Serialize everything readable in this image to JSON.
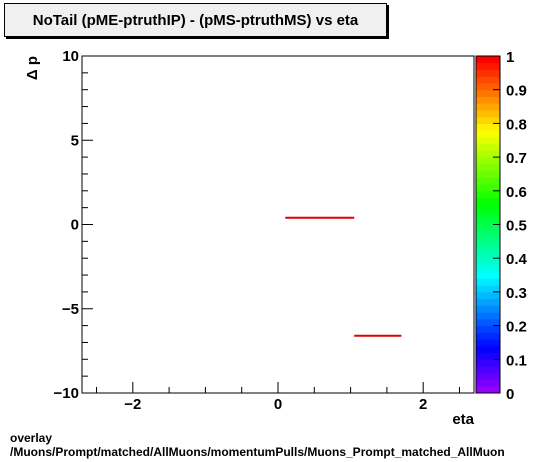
{
  "chart_data": {
    "type": "line",
    "title": "NoTail (pME-ptruthIP) - (pMS-ptruthMS) vs eta",
    "xlabel": "eta",
    "ylabel": "Δ p",
    "xlim": [
      -2.7,
      2.7
    ],
    "ylim": [
      -10,
      10
    ],
    "x_ticks": [
      -2,
      0,
      2
    ],
    "x_tick_labels": [
      "−2",
      "0",
      "2"
    ],
    "y_ticks": [
      -10,
      -5,
      0,
      5,
      10
    ],
    "y_tick_labels": [
      "−10",
      "−5",
      "0",
      "5",
      "10"
    ],
    "grid": false,
    "segments": [
      {
        "x_start": 0.1,
        "x_end": 1.05,
        "y": 0.4
      },
      {
        "x_start": 1.05,
        "x_end": 1.7,
        "y": -6.6
      }
    ],
    "color_scale": {
      "min": 0,
      "max": 1,
      "tick_labels": [
        "0",
        "0.1",
        "0.2",
        "0.3",
        "0.4",
        "0.5",
        "0.6",
        "0.7",
        "0.8",
        "0.9",
        "1"
      ]
    },
    "line_color": "#e00000"
  },
  "footer": {
    "line1": "overlay",
    "line2": "/Muons/Prompt/matched/AllMuons/momentumPulls/Muons_Prompt_matched_AllMuon"
  }
}
